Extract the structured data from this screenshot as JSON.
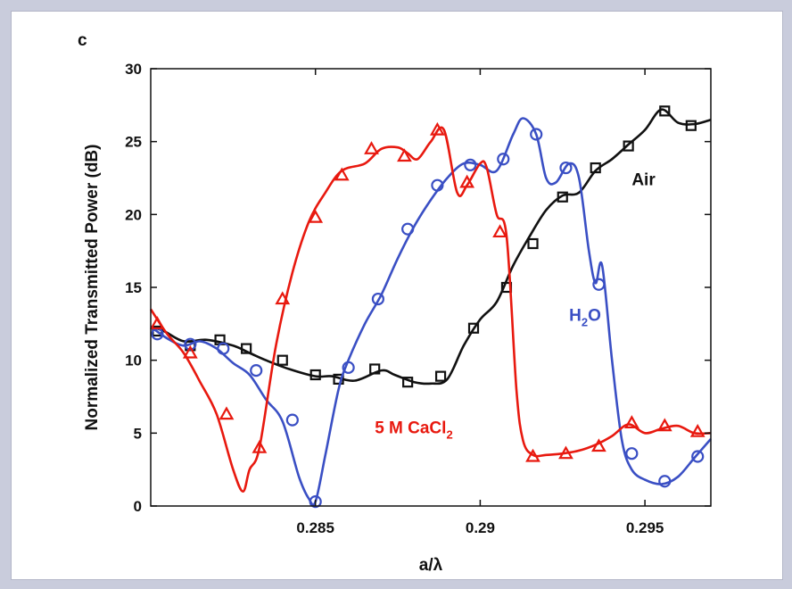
{
  "panel_label": "c",
  "colors": {
    "air": "#111111",
    "h2o": "#3a4fc4",
    "cacl2": "#e8190f"
  },
  "chart_data": {
    "type": "line",
    "title": "",
    "xlabel": "a/λ",
    "ylabel": "Normalized Transmitted Power (dB)",
    "xlim": [
      0.28,
      0.297
    ],
    "ylim": [
      0,
      30
    ],
    "xticks": [
      0.285,
      0.29,
      0.295
    ],
    "xtick_labels": [
      "0.285",
      "0.29",
      "0.295"
    ],
    "yticks": [
      0,
      5,
      10,
      15,
      20,
      25,
      30
    ],
    "ytick_labels": [
      "0",
      "5",
      "10",
      "15",
      "20",
      "25",
      "30"
    ],
    "grid": false,
    "legend": "inline labels",
    "series": [
      {
        "name": "Air",
        "label_main": "Air",
        "label_sub": "",
        "color_key": "air",
        "marker": "square",
        "x": [
          0.28,
          0.2804,
          0.281,
          0.2817,
          0.2825,
          0.283,
          0.2835,
          0.2842,
          0.285,
          0.2855,
          0.2862,
          0.287,
          0.2874,
          0.288,
          0.2885,
          0.289,
          0.2895,
          0.29,
          0.2905,
          0.291,
          0.2915,
          0.292,
          0.2925,
          0.293,
          0.2935,
          0.294,
          0.2945,
          0.295,
          0.2955,
          0.296,
          0.2965,
          0.297
        ],
        "y": [
          12.3,
          12.0,
          11.3,
          11.4,
          11.0,
          10.5,
          10.0,
          9.4,
          8.9,
          8.9,
          8.6,
          9.3,
          9.0,
          8.5,
          8.4,
          8.7,
          11.0,
          12.8,
          14.0,
          16.5,
          18.5,
          20.3,
          21.3,
          21.5,
          23.0,
          23.8,
          24.8,
          25.8,
          27.2,
          26.3,
          26.2,
          26.5
        ],
        "markers_x": [
          0.2802,
          0.2812,
          0.2821,
          0.2829,
          0.284,
          0.285,
          0.2857,
          0.2868,
          0.2878,
          0.2888,
          0.2898,
          0.2908,
          0.2916,
          0.2925,
          0.2935,
          0.2945,
          0.2956,
          0.2964
        ],
        "markers_y": [
          12.0,
          11.0,
          11.4,
          10.8,
          10.0,
          9.0,
          8.7,
          9.4,
          8.5,
          8.9,
          12.2,
          15.0,
          18.0,
          21.2,
          23.2,
          24.7,
          27.1,
          26.1
        ]
      },
      {
        "name": "H2O",
        "label_main": "H",
        "label_sub": "2",
        "label_tail": "O",
        "color_key": "h2o",
        "marker": "circle",
        "x": [
          0.28,
          0.2805,
          0.281,
          0.2815,
          0.282,
          0.2825,
          0.283,
          0.2835,
          0.284,
          0.2845,
          0.2848,
          0.285,
          0.2853,
          0.2857,
          0.286,
          0.2865,
          0.287,
          0.2875,
          0.288,
          0.2885,
          0.289,
          0.2895,
          0.29,
          0.2905,
          0.291,
          0.2913,
          0.2917,
          0.292,
          0.2923,
          0.2927,
          0.293,
          0.2933,
          0.2935,
          0.2937,
          0.294,
          0.2943,
          0.2946,
          0.295,
          0.2955,
          0.296,
          0.2965,
          0.297
        ],
        "y": [
          12.3,
          11.5,
          11.0,
          11.3,
          10.8,
          9.8,
          9.0,
          7.3,
          5.8,
          2.0,
          0.5,
          0.3,
          3.5,
          8.0,
          10.0,
          12.5,
          14.5,
          17.0,
          19.2,
          21.0,
          22.5,
          23.5,
          23.4,
          23.0,
          25.5,
          26.6,
          25.5,
          22.5,
          22.2,
          23.5,
          22.5,
          17.5,
          15.3,
          16.5,
          10.0,
          4.5,
          2.5,
          1.8,
          1.5,
          2.0,
          3.3,
          4.6
        ],
        "markers_x": [
          0.2802,
          0.2812,
          0.2822,
          0.2832,
          0.2843,
          0.285,
          0.286,
          0.2869,
          0.2878,
          0.2887,
          0.2897,
          0.2907,
          0.2917,
          0.2926,
          0.2936,
          0.2946,
          0.2956,
          0.2966
        ],
        "markers_y": [
          11.8,
          11.1,
          10.8,
          9.3,
          5.9,
          0.3,
          9.5,
          14.2,
          19.0,
          22.0,
          23.4,
          23.8,
          25.5,
          23.2,
          15.2,
          3.6,
          1.7,
          3.4
        ]
      },
      {
        "name": "5 M CaCl2",
        "label_main": "5 M CaCl",
        "label_sub": "2",
        "color_key": "cacl2",
        "marker": "triangle",
        "x": [
          0.28,
          0.2805,
          0.281,
          0.2815,
          0.282,
          0.2825,
          0.2828,
          0.283,
          0.2833,
          0.2838,
          0.2843,
          0.2848,
          0.2853,
          0.2858,
          0.2865,
          0.287,
          0.2875,
          0.2878,
          0.2881,
          0.2885,
          0.2889,
          0.2893,
          0.2896,
          0.29,
          0.2902,
          0.2905,
          0.2908,
          0.2911,
          0.2913,
          0.2916,
          0.292,
          0.2925,
          0.293,
          0.2935,
          0.294,
          0.2945,
          0.295,
          0.2955,
          0.296,
          0.2965,
          0.297
        ],
        "y": [
          13.5,
          11.8,
          10.5,
          8.5,
          6.3,
          2.5,
          1.0,
          2.5,
          4.0,
          11.0,
          16.0,
          19.5,
          21.5,
          23.0,
          23.5,
          24.5,
          24.6,
          24.2,
          23.8,
          25.0,
          25.8,
          21.5,
          22.0,
          23.5,
          23.2,
          20.0,
          18.5,
          8.0,
          4.5,
          3.5,
          3.5,
          3.6,
          3.8,
          4.2,
          4.8,
          5.6,
          5.0,
          5.3,
          5.5,
          5.0,
          5.0
        ],
        "markers_x": [
          0.2802,
          0.2812,
          0.2823,
          0.2833,
          0.284,
          0.285,
          0.2858,
          0.2867,
          0.2877,
          0.2887,
          0.2896,
          0.2906,
          0.2916,
          0.2926,
          0.2936,
          0.2946,
          0.2956,
          0.2966
        ],
        "markers_y": [
          12.5,
          10.5,
          6.3,
          4.0,
          14.2,
          19.8,
          22.7,
          24.5,
          24.0,
          25.8,
          22.2,
          18.8,
          3.4,
          3.6,
          4.1,
          5.7,
          5.5,
          5.1
        ]
      }
    ]
  }
}
